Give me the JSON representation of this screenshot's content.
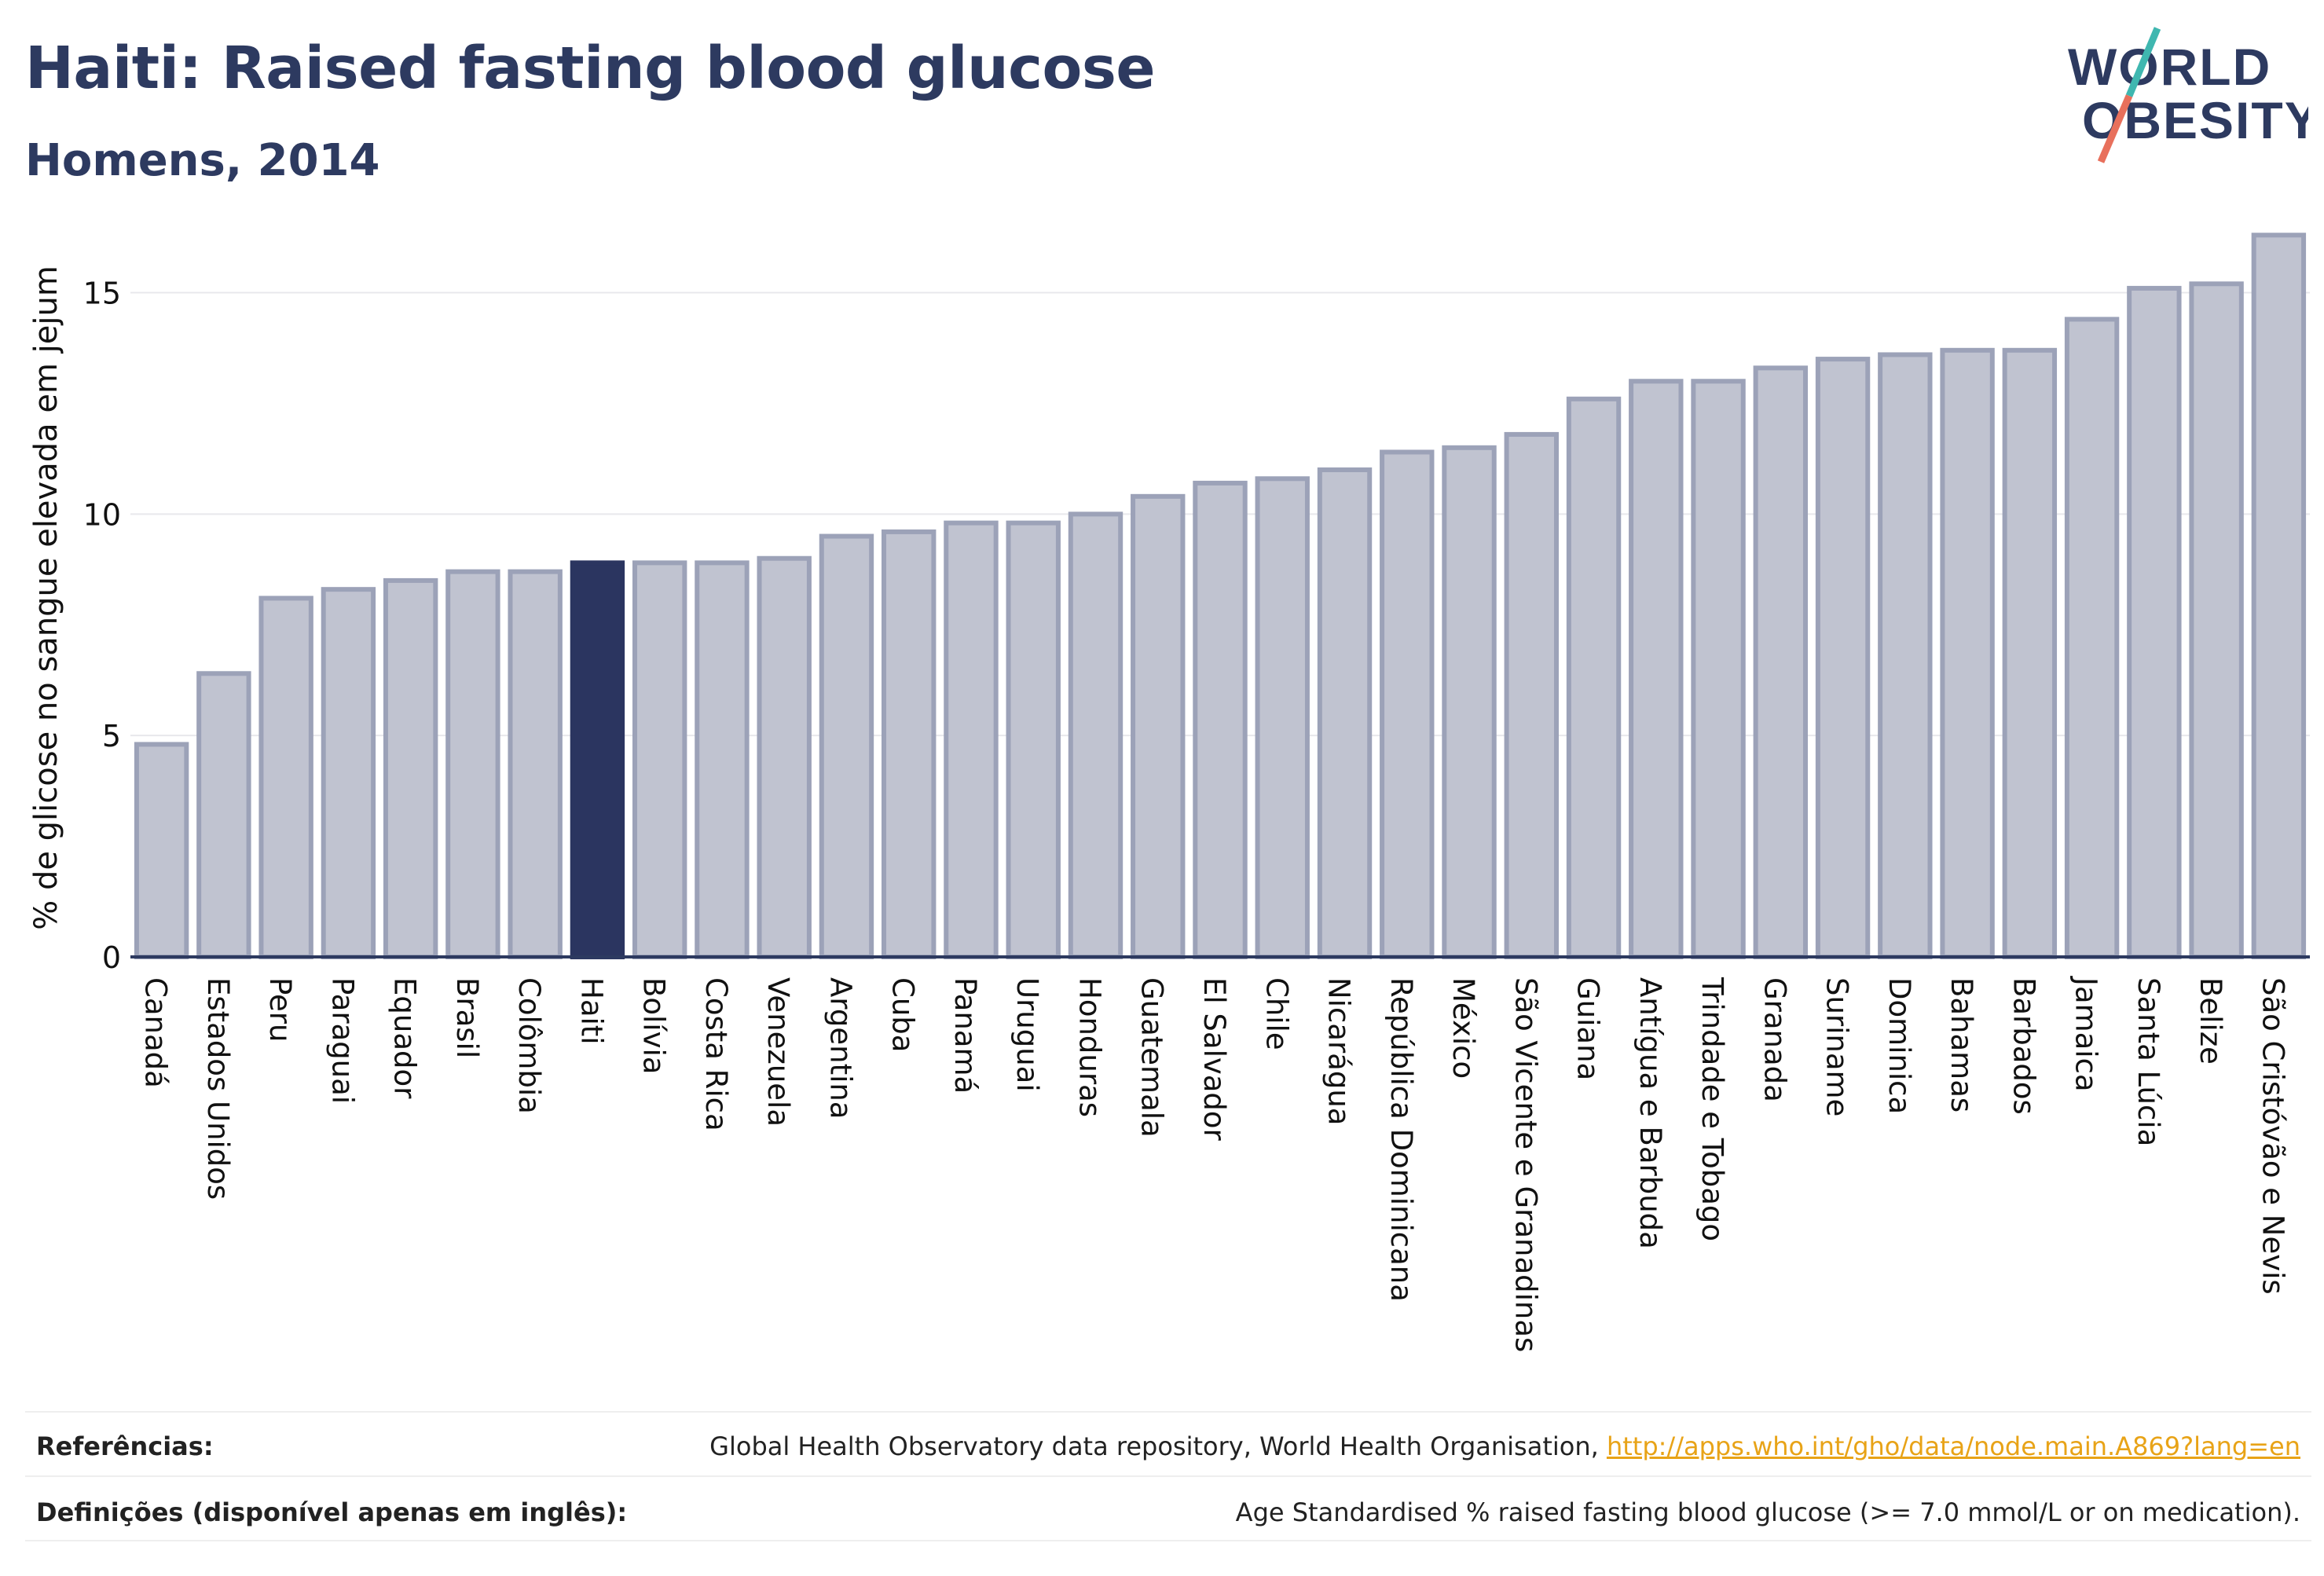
{
  "header": {
    "title": "Haiti: Raised fasting blood glucose",
    "subtitle": "Homens, 2014"
  },
  "logo": {
    "line1": "WORLD",
    "line2": "OBESITY"
  },
  "chart_data": {
    "type": "bar",
    "ylabel": "% de glicose no sangue elevada em jejum",
    "xlabel": "",
    "ylim": [
      0,
      16.5
    ],
    "yticks": [
      0,
      5,
      10,
      15
    ],
    "grid": true,
    "highlight": "Haiti",
    "categories": [
      "Canadá",
      "Estados Unidos",
      "Peru",
      "Paraguai",
      "Equador",
      "Brasil",
      "Colômbia",
      "Haiti",
      "Bolívia",
      "Costa Rica",
      "Venezuela",
      "Argentina",
      "Cuba",
      "Panamá",
      "Uruguai",
      "Honduras",
      "Guatemala",
      "El Salvador",
      "Chile",
      "Nicarágua",
      "República Dominicana",
      "México",
      "São Vicente e Granadinas",
      "Guiana",
      "Antígua e Barbuda",
      "Trindade e Tobago",
      "Granada",
      "Suriname",
      "Dominica",
      "Bahamas",
      "Barbados",
      "Jamaica",
      "Santa Lúcia",
      "Belize",
      "São Cristóvão e Nevis"
    ],
    "values": [
      4.8,
      6.4,
      8.1,
      8.3,
      8.5,
      8.7,
      8.7,
      8.9,
      8.9,
      8.9,
      9.0,
      9.5,
      9.6,
      9.8,
      9.8,
      10.0,
      10.4,
      10.7,
      10.8,
      11.0,
      11.4,
      11.5,
      11.8,
      12.6,
      13.0,
      13.0,
      13.3,
      13.5,
      13.6,
      13.7,
      13.7,
      14.4,
      15.1,
      15.2,
      16.3
    ]
  },
  "colors": {
    "title": "#2d3a60",
    "bar": "#c0c3d0",
    "bar_border": "#9ca2b8",
    "highlight": "#2b3560",
    "axis": "#2d3a60",
    "grid": "#e8e8ec",
    "logo_slash_teal": "#3fb7b0",
    "logo_slash_coral": "#e8705c",
    "link": "#e8a317"
  },
  "footer": {
    "references_label": "Referências:",
    "references_text": "Global Health Observatory data repository, World Health Organisation, ",
    "references_link": "http://apps.who.int/gho/data/node.main.A869?lang=en",
    "definitions_label": "Definições (disponível apenas em inglês):",
    "definitions_text": "Age Standardised % raised fasting blood glucose (>= 7.0 mmol/L or on medication)."
  }
}
